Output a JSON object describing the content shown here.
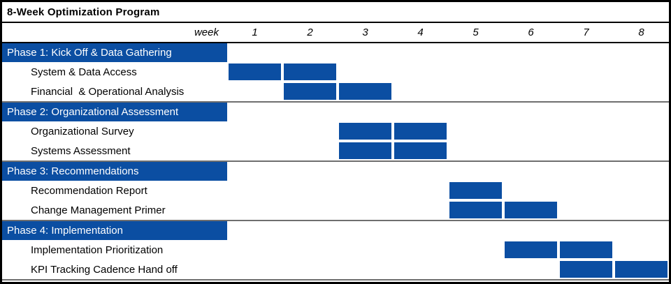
{
  "title": "8-Week Optimization Program",
  "axis": {
    "label": "week",
    "weeks": [
      "1",
      "2",
      "3",
      "4",
      "5",
      "6",
      "7",
      "8"
    ]
  },
  "phases": [
    {
      "label": "Phase 1: Kick Off & Data Gathering",
      "tasks": [
        {
          "label": "System & Data Access",
          "start_week": 1,
          "end_week": 2
        },
        {
          "label": "Financial  & Operational Analysis",
          "start_week": 2,
          "end_week": 3
        }
      ]
    },
    {
      "label": "Phase 2: Organizational Assessment",
      "tasks": [
        {
          "label": "Organizational Survey",
          "start_week": 3,
          "end_week": 4
        },
        {
          "label": "Systems Assessment",
          "start_week": 3,
          "end_week": 4
        }
      ]
    },
    {
      "label": "Phase 3: Recommendations",
      "tasks": [
        {
          "label": "Recommendation Report",
          "start_week": 5,
          "end_week": 5
        },
        {
          "label": "Change Management Primer",
          "start_week": 5,
          "end_week": 6
        }
      ]
    },
    {
      "label": "Phase 4: Implementation",
      "tasks": [
        {
          "label": "Implementation Prioritization",
          "start_week": 6,
          "end_week": 7
        },
        {
          "label": "KPI Tracking Cadence Hand off",
          "start_week": 7,
          "end_week": 8
        }
      ]
    }
  ],
  "colors": {
    "bar": "#0B4EA2",
    "phase_bg": "#0B4EA2",
    "phase_text": "#FFFFFF",
    "separator": "#6E6E6E",
    "frame_border": "#000000"
  },
  "chart_data": {
    "type": "bar",
    "subtype": "gantt",
    "title": "8-Week Optimization Program",
    "xlabel": "week",
    "x_ticks": [
      1,
      2,
      3,
      4,
      5,
      6,
      7,
      8
    ],
    "xlim": [
      1,
      8
    ],
    "bar_color": "#0B4EA2",
    "legend": "none",
    "grid": false,
    "tasks": [
      {
        "phase": "Phase 1: Kick Off & Data Gathering",
        "task": "System & Data Access",
        "start_week": 1,
        "end_week": 2,
        "duration_weeks": 2
      },
      {
        "phase": "Phase 1: Kick Off & Data Gathering",
        "task": "Financial  & Operational Analysis",
        "start_week": 2,
        "end_week": 3,
        "duration_weeks": 2
      },
      {
        "phase": "Phase 2: Organizational Assessment",
        "task": "Organizational Survey",
        "start_week": 3,
        "end_week": 4,
        "duration_weeks": 2
      },
      {
        "phase": "Phase 2: Organizational Assessment",
        "task": "Systems Assessment",
        "start_week": 3,
        "end_week": 4,
        "duration_weeks": 2
      },
      {
        "phase": "Phase 3: Recommendations",
        "task": "Recommendation Report",
        "start_week": 5,
        "end_week": 5,
        "duration_weeks": 1
      },
      {
        "phase": "Phase 3: Recommendations",
        "task": "Change Management Primer",
        "start_week": 5,
        "end_week": 6,
        "duration_weeks": 2
      },
      {
        "phase": "Phase 4: Implementation",
        "task": "Implementation Prioritization",
        "start_week": 6,
        "end_week": 7,
        "duration_weeks": 2
      },
      {
        "phase": "Phase 4: Implementation",
        "task": "KPI Tracking Cadence Hand off",
        "start_week": 7,
        "end_week": 8,
        "duration_weeks": 2
      }
    ]
  }
}
